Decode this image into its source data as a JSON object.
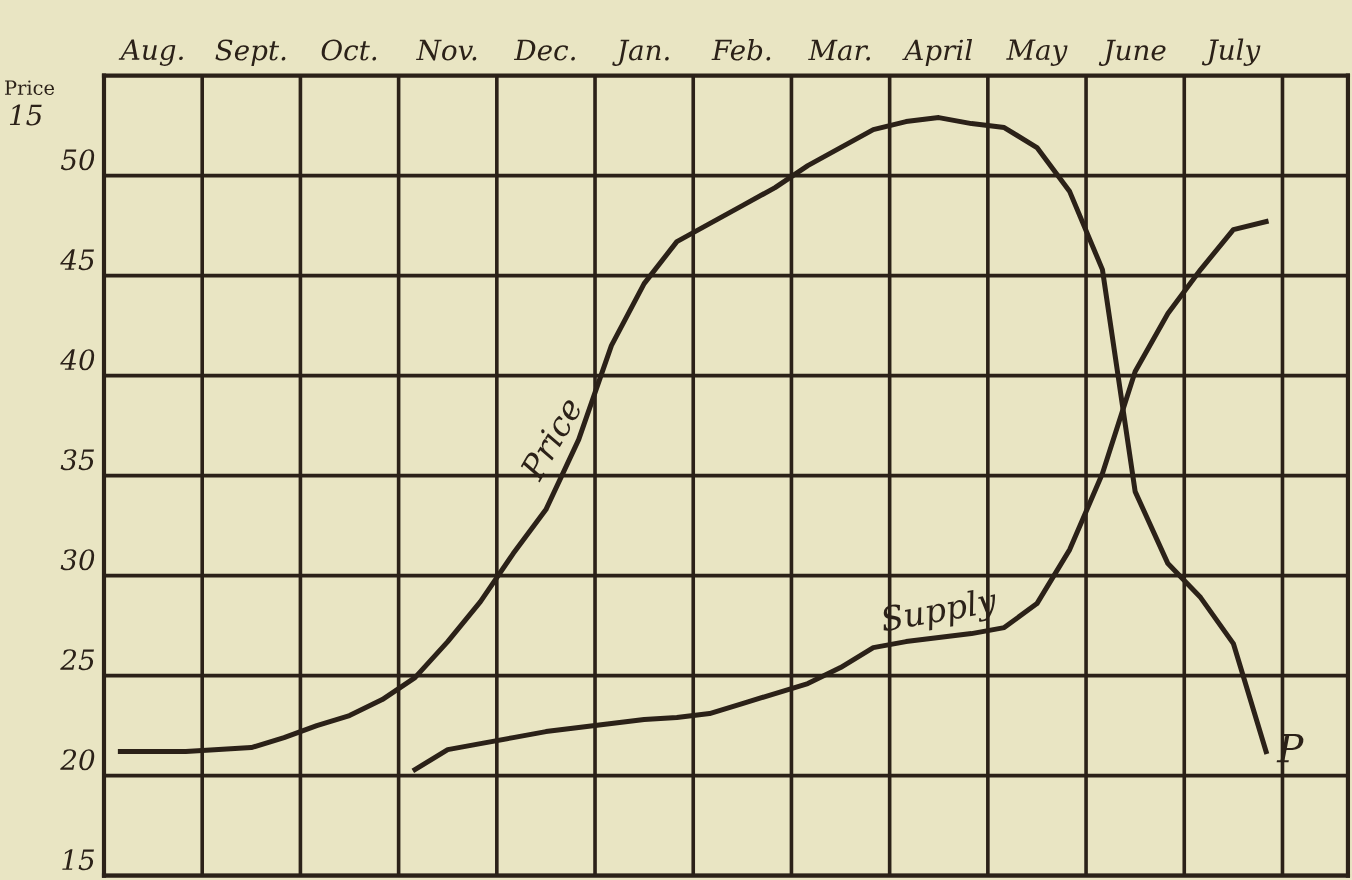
{
  "chart_data": {
    "type": "line",
    "ylabel": "Price",
    "categories": [
      null,
      "Aug.",
      null,
      null,
      "Sept.",
      null,
      null,
      "Oct.",
      null,
      null,
      "Nov.",
      null,
      null,
      "Dec.",
      null,
      null,
      "Jan.",
      null,
      null,
      "Feb.",
      null,
      null,
      "Mar.",
      null,
      null,
      "April",
      null,
      null,
      "May",
      null,
      null,
      "June",
      null,
      null,
      "July",
      null,
      null,
      null
    ],
    "ylim": [
      15,
      55
    ],
    "yticks": [
      15,
      20,
      25,
      30,
      35,
      40,
      45,
      50
    ],
    "grid": true,
    "legend": false,
    "marker": "none",
    "line_style": "solid",
    "annotations": [
      "15",
      "P"
    ],
    "series": [
      {
        "name": "Price",
        "color": "#2b2118",
        "values": [
          21.2,
          21.2,
          21.2,
          21.3,
          21.4,
          21.9,
          22.5,
          23.0,
          23.8,
          24.9,
          26.7,
          28.7,
          31.1,
          33.3,
          36.8,
          41.5,
          44.6,
          46.7,
          47.6,
          48.5,
          49.4,
          50.5,
          51.4,
          52.3,
          52.7,
          52.9,
          52.6,
          52.4,
          51.4,
          49.2,
          45.3,
          34.2,
          30.6,
          28.9,
          26.6,
          21.2,
          null,
          null
        ]
      },
      {
        "name": "Supply",
        "color": "#2b2118",
        "values": [
          null,
          null,
          null,
          null,
          null,
          null,
          null,
          null,
          null,
          20.3,
          21.3,
          21.6,
          21.9,
          22.2,
          22.4,
          22.6,
          22.8,
          22.9,
          23.1,
          23.6,
          24.1,
          24.6,
          25.4,
          26.4,
          26.7,
          26.9,
          27.1,
          27.4,
          28.6,
          31.3,
          35.1,
          40.2,
          43.1,
          45.3,
          47.3,
          47.7,
          null,
          null
        ]
      }
    ]
  }
}
